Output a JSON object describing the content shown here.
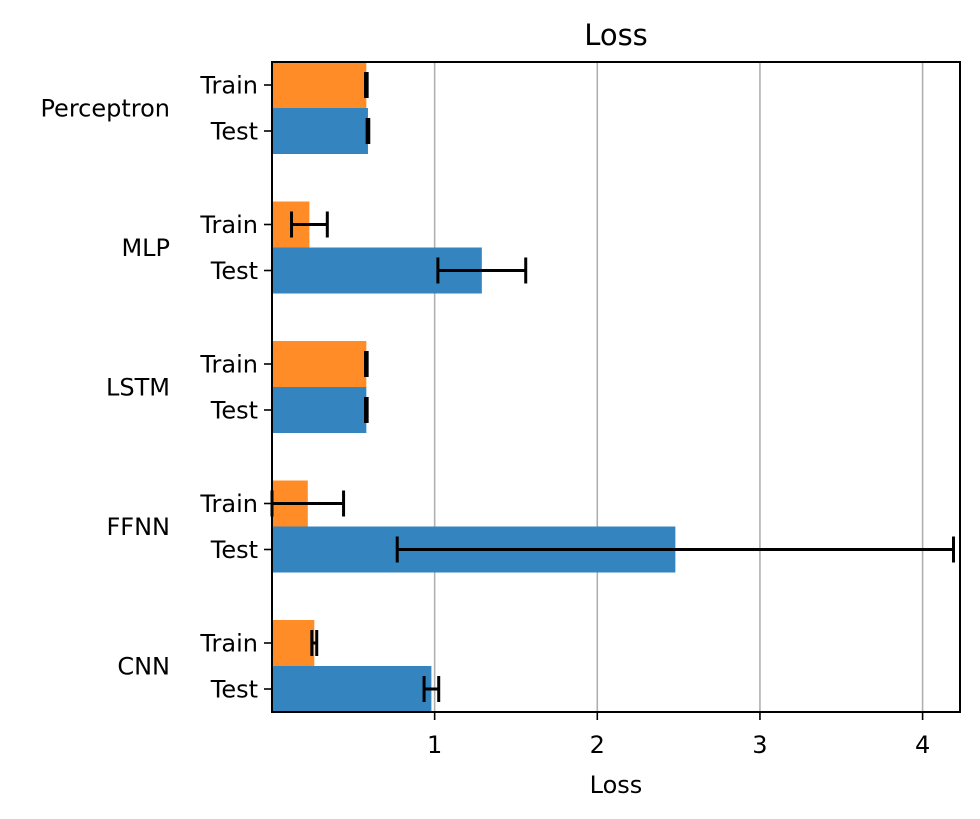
{
  "chart_data": {
    "type": "bar",
    "orientation": "horizontal",
    "title": "Loss",
    "xlabel": "Loss",
    "ylabel": "",
    "xlim": [
      0.0,
      4.23
    ],
    "xticks": [
      1,
      2,
      3,
      4
    ],
    "xtick_labels": [
      "1",
      "2",
      "3",
      "4"
    ],
    "grid": "x",
    "legend": "none",
    "categories": [
      "Perceptron",
      "MLP",
      "LSTM",
      "FFNN",
      "CNN"
    ],
    "series": [
      {
        "label": "Train",
        "color": "#ff8c27",
        "values": [
          0.58,
          0.23,
          0.58,
          0.22,
          0.26
        ],
        "errors": [
          0.005,
          0.11,
          0.005,
          0.22,
          0.015
        ]
      },
      {
        "label": "Test",
        "color": "#3384bf",
        "values": [
          0.59,
          1.29,
          0.58,
          2.48,
          0.98
        ],
        "errors": [
          0.005,
          0.27,
          0.005,
          1.71,
          0.045
        ]
      }
    ]
  }
}
